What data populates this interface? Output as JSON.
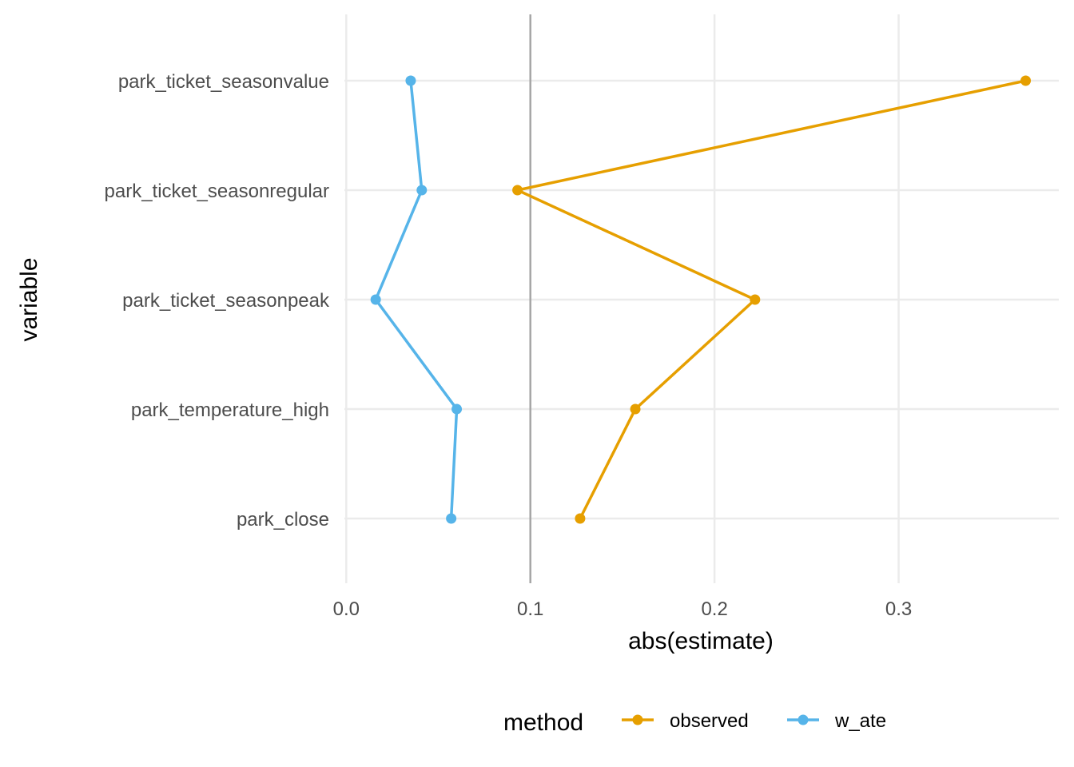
{
  "chart_data": {
    "type": "line",
    "title": "",
    "xlabel": "abs(estimate)",
    "ylabel": "variable",
    "xlim": [
      -0.001,
      0.387
    ],
    "x_ticks": [
      0.0,
      0.1,
      0.2,
      0.3
    ],
    "x_tick_labels": [
      "0.0",
      "0.1",
      "0.2",
      "0.3"
    ],
    "categories": [
      "park_ticket_seasonvalue",
      "park_ticket_seasonregular",
      "park_ticket_seasonpeak",
      "park_temperature_high",
      "park_close"
    ],
    "reference_line_x": 0.1,
    "grid": true,
    "legend": {
      "title": "method",
      "position": "bottom"
    },
    "series": [
      {
        "name": "observed",
        "color": "#E69F00",
        "values": [
          0.369,
          0.093,
          0.222,
          0.157,
          0.127
        ]
      },
      {
        "name": "w_ate",
        "color": "#56B4E9",
        "values": [
          0.035,
          0.041,
          0.016,
          0.06,
          0.057
        ]
      }
    ]
  }
}
